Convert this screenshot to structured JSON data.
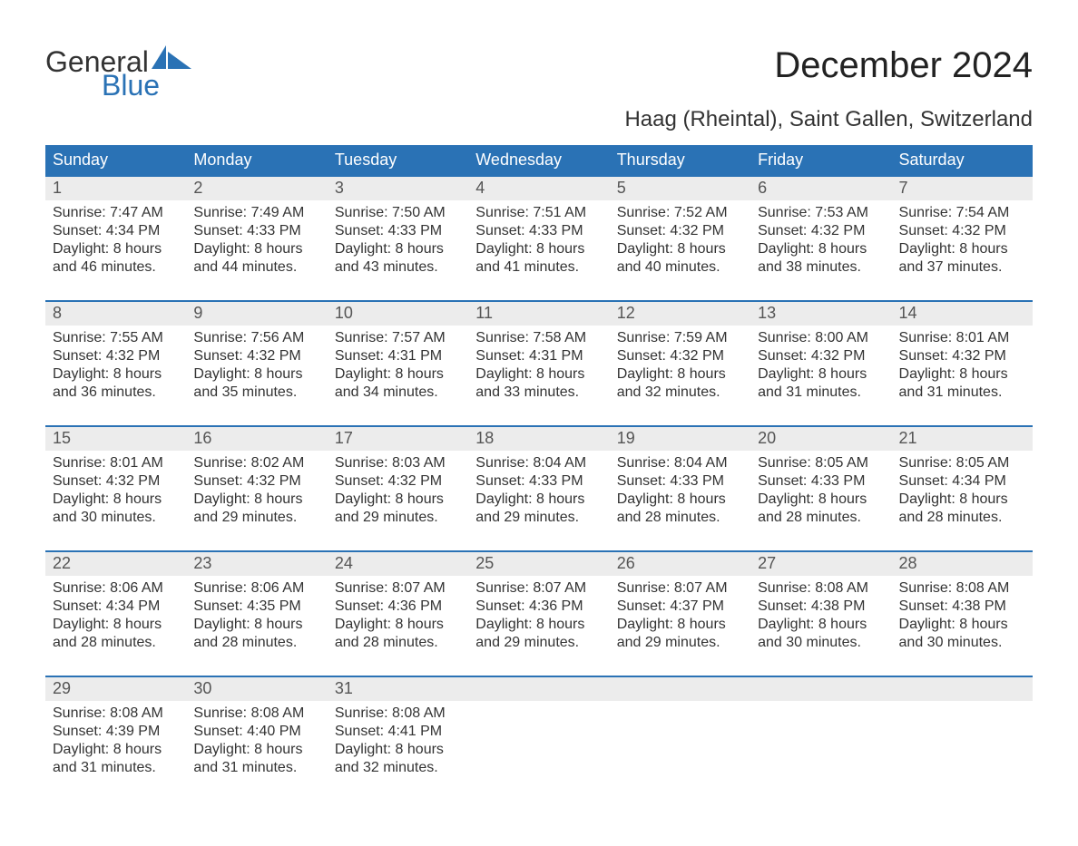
{
  "logo": {
    "text1": "General",
    "text2": "Blue"
  },
  "title": "December 2024",
  "subtitle": "Haag (Rheintal), Saint Gallen, Switzerland",
  "colors": {
    "brand_blue": "#2a72b5",
    "weekday_text": "#ffffff",
    "daynum_bg": "#ececec",
    "daynum_text": "#555555",
    "body_text": "#333333",
    "page_bg": "#ffffff"
  },
  "typography": {
    "title_fontsize": 40,
    "subtitle_fontsize": 24,
    "weekday_fontsize": 18,
    "daynum_fontsize": 18,
    "body_fontsize": 16,
    "logo_fontsize": 32
  },
  "weekdays": [
    "Sunday",
    "Monday",
    "Tuesday",
    "Wednesday",
    "Thursday",
    "Friday",
    "Saturday"
  ],
  "weeks": [
    [
      {
        "n": "1",
        "sunrise": "7:47 AM",
        "sunset": "4:34 PM",
        "h": "8",
        "m": "46"
      },
      {
        "n": "2",
        "sunrise": "7:49 AM",
        "sunset": "4:33 PM",
        "h": "8",
        "m": "44"
      },
      {
        "n": "3",
        "sunrise": "7:50 AM",
        "sunset": "4:33 PM",
        "h": "8",
        "m": "43"
      },
      {
        "n": "4",
        "sunrise": "7:51 AM",
        "sunset": "4:33 PM",
        "h": "8",
        "m": "41"
      },
      {
        "n": "5",
        "sunrise": "7:52 AM",
        "sunset": "4:32 PM",
        "h": "8",
        "m": "40"
      },
      {
        "n": "6",
        "sunrise": "7:53 AM",
        "sunset": "4:32 PM",
        "h": "8",
        "m": "38"
      },
      {
        "n": "7",
        "sunrise": "7:54 AM",
        "sunset": "4:32 PM",
        "h": "8",
        "m": "37"
      }
    ],
    [
      {
        "n": "8",
        "sunrise": "7:55 AM",
        "sunset": "4:32 PM",
        "h": "8",
        "m": "36"
      },
      {
        "n": "9",
        "sunrise": "7:56 AM",
        "sunset": "4:32 PM",
        "h": "8",
        "m": "35"
      },
      {
        "n": "10",
        "sunrise": "7:57 AM",
        "sunset": "4:31 PM",
        "h": "8",
        "m": "34"
      },
      {
        "n": "11",
        "sunrise": "7:58 AM",
        "sunset": "4:31 PM",
        "h": "8",
        "m": "33"
      },
      {
        "n": "12",
        "sunrise": "7:59 AM",
        "sunset": "4:32 PM",
        "h": "8",
        "m": "32"
      },
      {
        "n": "13",
        "sunrise": "8:00 AM",
        "sunset": "4:32 PM",
        "h": "8",
        "m": "31"
      },
      {
        "n": "14",
        "sunrise": "8:01 AM",
        "sunset": "4:32 PM",
        "h": "8",
        "m": "31"
      }
    ],
    [
      {
        "n": "15",
        "sunrise": "8:01 AM",
        "sunset": "4:32 PM",
        "h": "8",
        "m": "30"
      },
      {
        "n": "16",
        "sunrise": "8:02 AM",
        "sunset": "4:32 PM",
        "h": "8",
        "m": "29"
      },
      {
        "n": "17",
        "sunrise": "8:03 AM",
        "sunset": "4:32 PM",
        "h": "8",
        "m": "29"
      },
      {
        "n": "18",
        "sunrise": "8:04 AM",
        "sunset": "4:33 PM",
        "h": "8",
        "m": "29"
      },
      {
        "n": "19",
        "sunrise": "8:04 AM",
        "sunset": "4:33 PM",
        "h": "8",
        "m": "28"
      },
      {
        "n": "20",
        "sunrise": "8:05 AM",
        "sunset": "4:33 PM",
        "h": "8",
        "m": "28"
      },
      {
        "n": "21",
        "sunrise": "8:05 AM",
        "sunset": "4:34 PM",
        "h": "8",
        "m": "28"
      }
    ],
    [
      {
        "n": "22",
        "sunrise": "8:06 AM",
        "sunset": "4:34 PM",
        "h": "8",
        "m": "28"
      },
      {
        "n": "23",
        "sunrise": "8:06 AM",
        "sunset": "4:35 PM",
        "h": "8",
        "m": "28"
      },
      {
        "n": "24",
        "sunrise": "8:07 AM",
        "sunset": "4:36 PM",
        "h": "8",
        "m": "28"
      },
      {
        "n": "25",
        "sunrise": "8:07 AM",
        "sunset": "4:36 PM",
        "h": "8",
        "m": "29"
      },
      {
        "n": "26",
        "sunrise": "8:07 AM",
        "sunset": "4:37 PM",
        "h": "8",
        "m": "29"
      },
      {
        "n": "27",
        "sunrise": "8:08 AM",
        "sunset": "4:38 PM",
        "h": "8",
        "m": "30"
      },
      {
        "n": "28",
        "sunrise": "8:08 AM",
        "sunset": "4:38 PM",
        "h": "8",
        "m": "30"
      }
    ],
    [
      {
        "n": "29",
        "sunrise": "8:08 AM",
        "sunset": "4:39 PM",
        "h": "8",
        "m": "31"
      },
      {
        "n": "30",
        "sunrise": "8:08 AM",
        "sunset": "4:40 PM",
        "h": "8",
        "m": "31"
      },
      {
        "n": "31",
        "sunrise": "8:08 AM",
        "sunset": "4:41 PM",
        "h": "8",
        "m": "32"
      },
      null,
      null,
      null,
      null
    ]
  ],
  "labels": {
    "sunrise": "Sunrise:",
    "sunset": "Sunset:",
    "daylight": "Daylight:",
    "hours": "hours",
    "and": "and",
    "minutes": "minutes."
  }
}
